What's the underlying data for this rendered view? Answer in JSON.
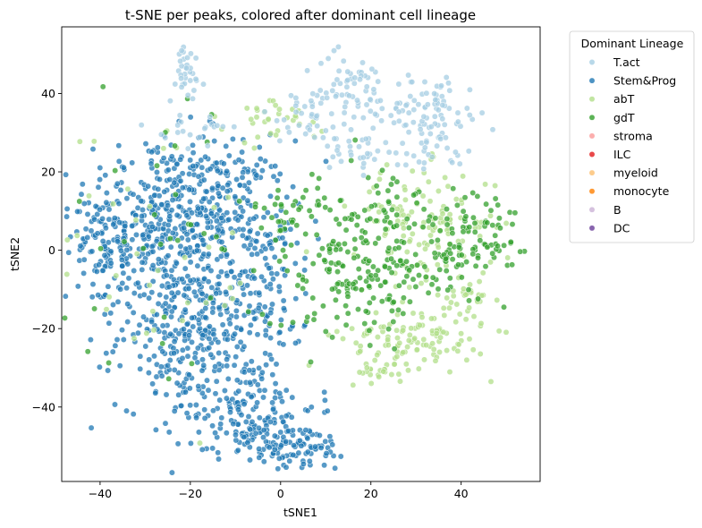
{
  "chart_data": {
    "type": "scatter",
    "title": "t-SNE per peaks, colored after dominant cell lineage",
    "xlabel": "tSNE1",
    "ylabel": "tSNE2",
    "xlim": [
      -48.5,
      57.5
    ],
    "ylim": [
      -59,
      57
    ],
    "xticks": [
      -40,
      -20,
      0,
      20,
      40
    ],
    "yticks": [
      -40,
      -20,
      0,
      20,
      40
    ],
    "grid": false,
    "legend": {
      "title": "Dominant Lineage",
      "placement": "outside-right-top",
      "entries": [
        "T.act",
        "Stem&Prog",
        "abT",
        "gdT",
        "stroma",
        "ILC",
        "myeloid",
        "monocyte",
        "B",
        "DC"
      ]
    },
    "series": [
      {
        "name": "T.act",
        "color": "#a6cee3",
        "clusters": [
          {
            "center": [
              -21,
              45
            ],
            "spread": [
              2,
              4
            ],
            "count": 35
          },
          {
            "center": [
              15,
              40
            ],
            "spread": [
              5,
              5
            ],
            "count": 70
          },
          {
            "center": [
              34,
              35
            ],
            "spread": [
              5,
              5
            ],
            "count": 90
          },
          {
            "center": [
              6,
              34
            ],
            "spread": [
              4,
              4
            ],
            "count": 30
          },
          {
            "center": [
              17,
              26
            ],
            "spread": [
              3,
              3
            ],
            "count": 30
          },
          {
            "center": [
              -18,
              31
            ],
            "spread": [
              4,
              2
            ],
            "count": 20
          },
          {
            "center": [
              30,
              24
            ],
            "spread": [
              4,
              2
            ],
            "count": 15
          }
        ]
      },
      {
        "name": "Stem&Prog",
        "color": "#1f78b4",
        "clusters": [
          {
            "center": [
              -28,
              5
            ],
            "spread": [
              9,
              12
            ],
            "count": 350
          },
          {
            "center": [
              -14,
              12
            ],
            "spread": [
              8,
              8
            ],
            "count": 220
          },
          {
            "center": [
              -20,
              -22
            ],
            "spread": [
              8,
              9
            ],
            "count": 250
          },
          {
            "center": [
              -8,
              -40
            ],
            "spread": [
              8,
              6
            ],
            "count": 150
          },
          {
            "center": [
              2,
              -50
            ],
            "spread": [
              7,
              3
            ],
            "count": 110
          },
          {
            "center": [
              -6,
              -8
            ],
            "spread": [
              7,
              10
            ],
            "count": 150
          },
          {
            "center": [
              -38,
              3
            ],
            "spread": [
              3,
              7
            ],
            "count": 60
          }
        ]
      },
      {
        "name": "abT",
        "color": "#b2df8a",
        "clusters": [
          {
            "center": [
              32,
              7
            ],
            "spread": [
              8,
              7
            ],
            "count": 120
          },
          {
            "center": [
              30,
              -22
            ],
            "spread": [
              8,
              4
            ],
            "count": 110
          },
          {
            "center": [
              22,
              -30
            ],
            "spread": [
              3,
              3
            ],
            "count": 30
          },
          {
            "center": [
              42,
              -13
            ],
            "spread": [
              3,
              4
            ],
            "count": 30
          },
          {
            "center": [
              0,
              34
            ],
            "spread": [
              5,
              3
            ],
            "count": 30
          },
          {
            "center": [
              -25,
              0
            ],
            "spread": [
              12,
              20
            ],
            "count": 40
          }
        ]
      },
      {
        "name": "gdT",
        "color": "#33a02c",
        "clusters": [
          {
            "center": [
              15,
              -3
            ],
            "spread": [
              7,
              9
            ],
            "count": 160
          },
          {
            "center": [
              43,
              4
            ],
            "spread": [
              5,
              7
            ],
            "count": 80
          },
          {
            "center": [
              33,
              -5
            ],
            "spread": [
              7,
              4
            ],
            "count": 60
          },
          {
            "center": [
              25,
              12
            ],
            "spread": [
              4,
              5
            ],
            "count": 30
          },
          {
            "center": [
              2,
              10
            ],
            "spread": [
              4,
              3
            ],
            "count": 30
          },
          {
            "center": [
              -20,
              5
            ],
            "spread": [
              15,
              20
            ],
            "count": 40
          }
        ]
      }
    ]
  }
}
